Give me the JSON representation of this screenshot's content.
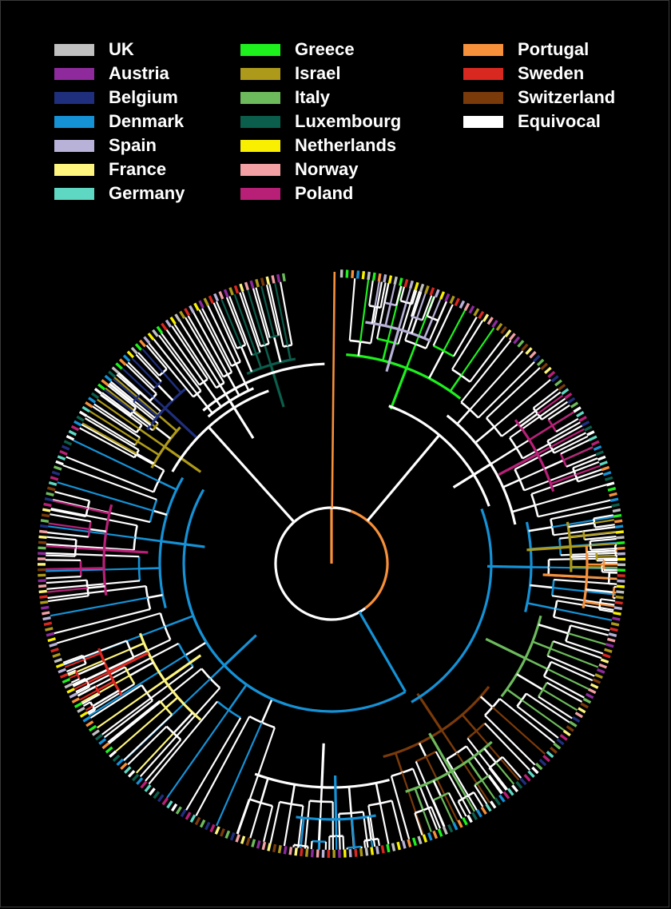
{
  "legend": [
    {
      "label": "UK",
      "color": "#c0c0c0"
    },
    {
      "label": "Austria",
      "color": "#8e2a9c"
    },
    {
      "label": "Belgium",
      "color": "#1f2f7e"
    },
    {
      "label": "Denmark",
      "color": "#1591d6"
    },
    {
      "label": "Spain",
      "color": "#b8b2d8"
    },
    {
      "label": "France",
      "color": "#fdf57e"
    },
    {
      "label": "Germany",
      "color": "#5ed8c2"
    },
    {
      "label": "Greece",
      "color": "#1ef01e"
    },
    {
      "label": "Israel",
      "color": "#ae9a1a"
    },
    {
      "label": "Italy",
      "color": "#6cba5c"
    },
    {
      "label": "Luxembourg",
      "color": "#0c5e4c"
    },
    {
      "label": "Netherlands",
      "color": "#f8f000"
    },
    {
      "label": "Norway",
      "color": "#f2a0a4"
    },
    {
      "label": "Poland",
      "color": "#b82078"
    },
    {
      "label": "Portugal",
      "color": "#f7903a"
    },
    {
      "label": "Sweden",
      "color": "#d82820"
    },
    {
      "label": "Switzerland",
      "color": "#7a3a0a"
    },
    {
      "label": "Equivocal",
      "color": "#ffffff"
    }
  ]
}
